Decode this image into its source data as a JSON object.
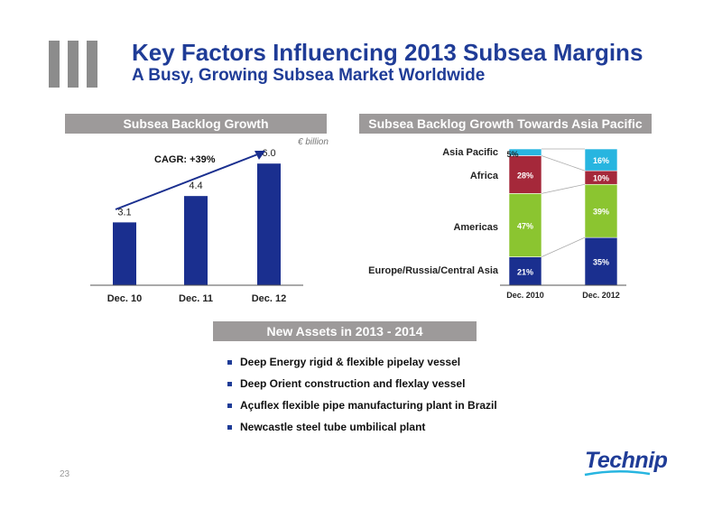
{
  "title": "Key Factors Influencing 2013 Subsea Margins",
  "subtitle": "A Busy, Growing Subsea Market Worldwide",
  "left_panel": {
    "header": "Subsea Backlog Growth",
    "unit": "€ billion",
    "annotation": "CAGR: +39%"
  },
  "right_panel": {
    "header": "Subsea Backlog Growth Towards Asia Pacific"
  },
  "bottom_panel": {
    "header": "New Assets in 2013 - 2014",
    "bullets": [
      "Deep Energy rigid & flexible pipelay vessel",
      "Deep Orient construction and flexlay vessel",
      "Açuflex flexible pipe manufacturing plant in Brazil",
      "Newcastle steel tube umbilical plant"
    ]
  },
  "page_number": "23",
  "logo_text": "Technip",
  "colors": {
    "navy": "#1f3c97",
    "bar_blue": "#1a2f8f",
    "band_gray": "#9d9a9a",
    "green": "#8bc530",
    "red": "#a5283a",
    "cyan": "#27b5e0"
  },
  "chart_data": [
    {
      "type": "bar",
      "categories": [
        "Dec. 10",
        "Dec. 11",
        "Dec. 12"
      ],
      "values": [
        3.1,
        4.4,
        6.0
      ],
      "value_labels": [
        "3.1",
        "4.4",
        "6.0"
      ],
      "ylabel": "€ billion",
      "ylim": [
        0,
        6.5
      ],
      "grid": false,
      "annotation": "CAGR: +39%"
    },
    {
      "type": "bar",
      "stacked": true,
      "percent": true,
      "categories": [
        "Dec. 2010",
        "Dec. 2012"
      ],
      "series": [
        {
          "name": "Europe/Russia/Central Asia",
          "values": [
            21,
            35
          ],
          "labels": [
            "21%",
            "35%"
          ]
        },
        {
          "name": "Americas",
          "values": [
            47,
            39
          ],
          "labels": [
            "47%",
            "39%"
          ]
        },
        {
          "name": "Africa",
          "values": [
            28,
            10
          ],
          "labels": [
            "28%",
            "10%"
          ]
        },
        {
          "name": "Asia Pacific",
          "values": [
            5,
            16
          ],
          "labels": [
            "5%",
            "16%"
          ]
        }
      ],
      "ylim": [
        0,
        100
      ],
      "legend": "left"
    }
  ]
}
